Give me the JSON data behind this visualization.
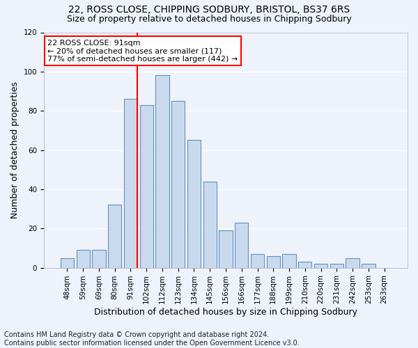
{
  "title1": "22, ROSS CLOSE, CHIPPING SODBURY, BRISTOL, BS37 6RS",
  "title2": "Size of property relative to detached houses in Chipping Sodbury",
  "xlabel": "Distribution of detached houses by size in Chipping Sodbury",
  "ylabel": "Number of detached properties",
  "footer1": "Contains HM Land Registry data © Crown copyright and database right 2024.",
  "footer2": "Contains public sector information licensed under the Open Government Licence v3.0.",
  "categories": [
    "48sqm",
    "59sqm",
    "69sqm",
    "80sqm",
    "91sqm",
    "102sqm",
    "112sqm",
    "123sqm",
    "134sqm",
    "145sqm",
    "156sqm",
    "166sqm",
    "177sqm",
    "188sqm",
    "199sqm",
    "210sqm",
    "220sqm",
    "231sqm",
    "242sqm",
    "253sqm",
    "263sqm"
  ],
  "values": [
    5,
    9,
    9,
    32,
    86,
    83,
    98,
    85,
    65,
    44,
    19,
    23,
    7,
    6,
    7,
    3,
    2,
    2,
    5,
    2,
    0
  ],
  "bar_color": "#c9daee",
  "bar_edge_color": "#6090c0",
  "highlight_bar_index": 4,
  "annotation_line1": "22 ROSS CLOSE: 91sqm",
  "annotation_line2": "← 20% of detached houses are smaller (117)",
  "annotation_line3": "77% of semi-detached houses are larger (442) →",
  "annotation_box_color": "white",
  "annotation_box_edge_color": "red",
  "vline_color": "red",
  "ylim": [
    0,
    120
  ],
  "yticks": [
    0,
    20,
    40,
    60,
    80,
    100,
    120
  ],
  "bg_color": "#eef2fb",
  "grid_color": "#ffffff",
  "title1_fontsize": 10,
  "title2_fontsize": 9,
  "ylabel_fontsize": 9,
  "xlabel_fontsize": 9,
  "tick_fontsize": 7.5,
  "annotation_fontsize": 8,
  "footer_fontsize": 7
}
